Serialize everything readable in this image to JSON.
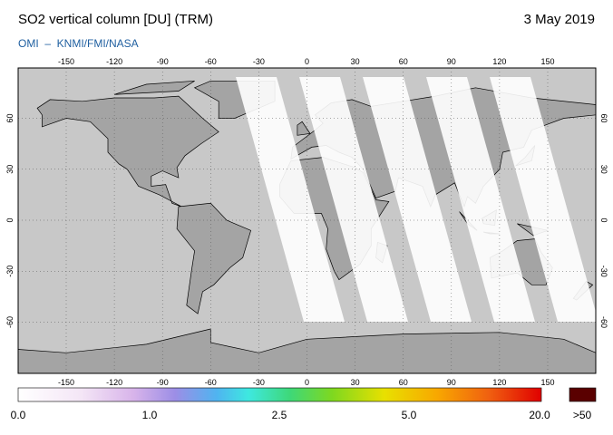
{
  "header": {
    "title": "SO2 vertical column [DU] (TRM)",
    "date": "3 May 2019",
    "source": "OMI  –  KNMI/FMI/NASA"
  },
  "map": {
    "lon_ticks": [
      -150,
      -120,
      -90,
      -60,
      -30,
      0,
      30,
      60,
      90,
      120,
      150
    ],
    "lat_ticks": [
      60,
      30,
      0,
      -30,
      -60
    ]
  },
  "colorbar": {
    "labels": [
      "0.0",
      "1.0",
      "2.5",
      "5.0",
      "20.0",
      ">50"
    ]
  }
}
